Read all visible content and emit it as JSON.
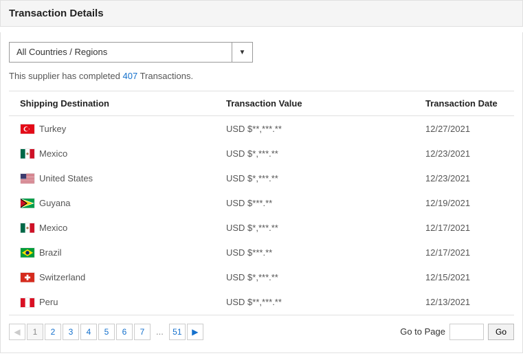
{
  "header": {
    "title": "Transaction Details"
  },
  "filter": {
    "selected": "All Countries / Regions"
  },
  "summary": {
    "prefix": "This supplier has completed ",
    "count": "407",
    "suffix": " Transactions."
  },
  "table": {
    "columns": {
      "destination": "Shipping Destination",
      "value": "Transaction Value",
      "date": "Transaction Date"
    },
    "rows": [
      {
        "country": "Turkey",
        "flag": "turkey",
        "value": "USD $**,***.**",
        "date": "12/27/2021"
      },
      {
        "country": "Mexico",
        "flag": "mexico",
        "value": "USD $*,***.**",
        "date": "12/23/2021"
      },
      {
        "country": "United States",
        "flag": "united-states",
        "value": "USD $*,***.**",
        "date": "12/23/2021"
      },
      {
        "country": "Guyana",
        "flag": "guyana",
        "value": "USD $***.**",
        "date": "12/19/2021"
      },
      {
        "country": "Mexico",
        "flag": "mexico",
        "value": "USD $*,***.**",
        "date": "12/17/2021"
      },
      {
        "country": "Brazil",
        "flag": "brazil",
        "value": "USD $***.**",
        "date": "12/17/2021"
      },
      {
        "country": "Switzerland",
        "flag": "switzerland",
        "value": "USD $*,***.**",
        "date": "12/15/2021"
      },
      {
        "country": "Peru",
        "flag": "peru",
        "value": "USD $**,***.**",
        "date": "12/13/2021"
      }
    ]
  },
  "pager": {
    "current": "1",
    "pages": [
      "1",
      "2",
      "3",
      "4",
      "5",
      "6",
      "7"
    ],
    "ellipsis": "...",
    "last": "51",
    "goto_label": "Go to Page",
    "go_label": "Go"
  },
  "flags": {
    "turkey": "<svg viewBox='0 0 22 15'><rect width='22' height='15' fill='#e30a17'/><circle cx='9' cy='7.5' r='4' fill='#fff'/><circle cx='10' cy='7.5' r='3.3' fill='#e30a17'/><polygon points='12.5,7.5 14.5,8.2 13.3,6.5 13.3,8.5 14.5,6.8' fill='#fff'/></svg>",
    "mexico": "<svg viewBox='0 0 22 15'><rect width='22' height='15' fill='#fff'/><rect width='7.3' height='15' fill='#006847'/><rect x='14.7' width='7.3' height='15' fill='#ce1126'/><circle cx='11' cy='7.5' r='1.8' fill='#a67c52'/></svg>",
    "united-states": "<svg viewBox='0 0 22 15'><rect width='22' height='15' fill='#b22234'/><rect y='1.15' width='22' height='1.15' fill='#fff'/><rect y='3.46' width='22' height='1.15' fill='#fff'/><rect y='5.77' width='22' height='1.15' fill='#fff'/><rect y='8.08' width='22' height='1.15' fill='#fff'/><rect y='10.38' width='22' height='1.15' fill='#fff'/><rect y='12.69' width='22' height='1.15' fill='#fff'/><rect width='9' height='8.08' fill='#3c3b6e'/></svg>",
    "guyana": "<svg viewBox='0 0 22 15'><rect width='22' height='15' fill='#009e49'/><polygon points='0,0 22,7.5 0,15' fill='#fff'/><polygon points='0,1 19.5,7.5 0,14' fill='#fcd116'/><polygon points='0,0 11,7.5 0,15' fill='#000'/><polygon points='0,1.5 9,7.5 0,13.5' fill='#ce1126'/></svg>",
    "brazil": "<svg viewBox='0 0 22 15'><rect width='22' height='15' fill='#009b3a'/><polygon points='11,2 20,7.5 11,13 2,7.5' fill='#fedf00'/><circle cx='11' cy='7.5' r='3' fill='#002776'/></svg>",
    "switzerland": "<svg viewBox='0 0 22 15'><rect width='22' height='15' fill='#d52b1e'/><rect x='9.5' y='3' width='3' height='9' fill='#fff'/><rect x='6.5' y='6' width='9' height='3' fill='#fff'/></svg>",
    "peru": "<svg viewBox='0 0 22 15'><rect width='22' height='15' fill='#fff'/><rect width='7.3' height='15' fill='#d91023'/><rect x='14.7' width='7.3' height='15' fill='#d91023'/></svg>"
  }
}
